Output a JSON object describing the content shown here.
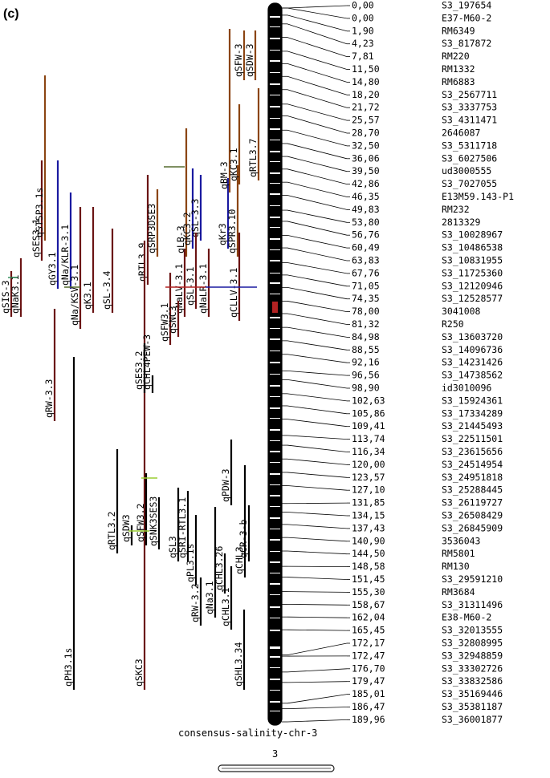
{
  "panel_label": "(c)",
  "chromosome_title": "consensus-salinity-chr-3",
  "chromosome_number": "3",
  "markers": [
    {
      "pos": "0,00",
      "name": "S3_197654"
    },
    {
      "pos": "0,00",
      "name": "E37-M60-2"
    },
    {
      "pos": "1,90",
      "name": "RM6349"
    },
    {
      "pos": "4,23",
      "name": "S3_817872"
    },
    {
      "pos": "7,81",
      "name": "RM220"
    },
    {
      "pos": "11,50",
      "name": "RM1332"
    },
    {
      "pos": "14,80",
      "name": "RM6883"
    },
    {
      "pos": "18,20",
      "name": "S3_2567711"
    },
    {
      "pos": "21,72",
      "name": "S3_3337753"
    },
    {
      "pos": "25,57",
      "name": "S3_4311471"
    },
    {
      "pos": "28,70",
      "name": "2646087"
    },
    {
      "pos": "32,50",
      "name": "S3_5311718"
    },
    {
      "pos": "36,06",
      "name": "S3_6027506"
    },
    {
      "pos": "39,50",
      "name": "ud3000555"
    },
    {
      "pos": "42,86",
      "name": "S3_7027055"
    },
    {
      "pos": "46,35",
      "name": "E13M59.143-P1"
    },
    {
      "pos": "49,83",
      "name": "RM232"
    },
    {
      "pos": "53,80",
      "name": "2813329"
    },
    {
      "pos": "56,76",
      "name": "S3_10028967"
    },
    {
      "pos": "60,49",
      "name": "S3_10486538"
    },
    {
      "pos": "63,83",
      "name": "S3_10831955"
    },
    {
      "pos": "67,76",
      "name": "S3_11725360"
    },
    {
      "pos": "71,05",
      "name": "S3_12120946"
    },
    {
      "pos": "74,35",
      "name": "S3_12528577"
    },
    {
      "pos": "78,00",
      "name": "3041008"
    },
    {
      "pos": "81,32",
      "name": "R250"
    },
    {
      "pos": "84,98",
      "name": "S3_13603720"
    },
    {
      "pos": "88,55",
      "name": "S3_14096736"
    },
    {
      "pos": "92,16",
      "name": "S3_14231426"
    },
    {
      "pos": "96,56",
      "name": "S3_14738562"
    },
    {
      "pos": "98,90",
      "name": "id3010096"
    },
    {
      "pos": "102,63",
      "name": "S3_15924361"
    },
    {
      "pos": "105,86",
      "name": "S3_17334289"
    },
    {
      "pos": "109,41",
      "name": "S3_21445493"
    },
    {
      "pos": "113,74",
      "name": "S3_22511501"
    },
    {
      "pos": "116,34",
      "name": "S3_23615656"
    },
    {
      "pos": "120,00",
      "name": "S3_24514954"
    },
    {
      "pos": "123,57",
      "name": "S3_24951818"
    },
    {
      "pos": "127,10",
      "name": "S3_25288445"
    },
    {
      "pos": "131,85",
      "name": "S3_26119727"
    },
    {
      "pos": "134,15",
      "name": "S3_26508429"
    },
    {
      "pos": "137,43",
      "name": "S3_26845909"
    },
    {
      "pos": "140,90",
      "name": "3536043"
    },
    {
      "pos": "144,50",
      "name": "RM5801"
    },
    {
      "pos": "148,58",
      "name": "RM130"
    },
    {
      "pos": "151,45",
      "name": "S3_29591210"
    },
    {
      "pos": "155,30",
      "name": "RM3684"
    },
    {
      "pos": "158,67",
      "name": "S3_31311496"
    },
    {
      "pos": "162,04",
      "name": "E38-M60-2"
    },
    {
      "pos": "165,45",
      "name": "S3_32013555"
    },
    {
      "pos": "172,17",
      "name": "S3_32808995"
    },
    {
      "pos": "172,47",
      "name": "S3_32948859"
    },
    {
      "pos": "176,70",
      "name": "S3_33302726"
    },
    {
      "pos": "179,47",
      "name": "S3_33832586"
    },
    {
      "pos": "185,01",
      "name": "S3_35169446"
    },
    {
      "pos": "186,47",
      "name": "S3_35381187"
    },
    {
      "pos": "189,96",
      "name": "S3_36001877"
    }
  ],
  "qtls": [
    {
      "label": "qSIS-3",
      "color": "#6b1414"
    },
    {
      "label": "qNaK3.1",
      "color": "#6b1414"
    },
    {
      "label": "qSES3.1",
      "color": "#6b1414"
    },
    {
      "label": "qSTSP3.1s",
      "color": "#8b4513"
    },
    {
      "label": "qGY3.1",
      "color": "#1a1aa0"
    },
    {
      "label": "qNa/KLR-3.1",
      "color": "#1a1aa0"
    },
    {
      "label": "qNa/KSV-3.1",
      "color": "#6b1414"
    },
    {
      "label": "qK3.1",
      "color": "#6b1414"
    },
    {
      "label": "qSL-3.4",
      "color": "#6b1414"
    },
    {
      "label": "qRW-3.3",
      "color": "#6b1414"
    },
    {
      "label": "qPH3.1s",
      "color": "#000000"
    },
    {
      "label": "qRTL3.9",
      "color": "#6b1414"
    },
    {
      "label": "qSRP3DSE3",
      "color": "#8b4513"
    },
    {
      "label": "qSKC3",
      "color": "#6b1414"
    },
    {
      "label": "qSFW3.1",
      "color": "#6b1414"
    },
    {
      "label": "qCHL4PEW-3",
      "color": "#000000"
    },
    {
      "label": "qSES3.2",
      "color": "#000000"
    },
    {
      "label": "qLB-3",
      "color": "#8b4513"
    },
    {
      "label": "qKC3.2",
      "color": "#1a1aa0"
    },
    {
      "label": "qSL-3.3",
      "color": "#1a1aa0"
    },
    {
      "label": "qSL-3.1",
      "color": "#6b1414"
    },
    {
      "label": "qNaLV-3.1",
      "color": "#6b1414"
    },
    {
      "label": "qSNC3",
      "color": "#6b1414"
    },
    {
      "label": "qKr3",
      "color": "#1a1aa0"
    },
    {
      "label": "qNaLR-3.1",
      "color": "#6b1414"
    },
    {
      "label": "qSPR3.10",
      "color": "#8b4513"
    },
    {
      "label": "qCLLV-3.1",
      "color": "#6b1414"
    },
    {
      "label": "qBM-3",
      "color": "#8b4513"
    },
    {
      "label": "qKC3.1",
      "color": "#8b4513"
    },
    {
      "label": "qSFW-3",
      "color": "#8b4513"
    },
    {
      "label": "qSDW-3",
      "color": "#8b4513"
    },
    {
      "label": "qRTL3.7",
      "color": "#8b4513"
    },
    {
      "label": "qRTL3.2",
      "color": "#000000"
    },
    {
      "label": "qSDW3",
      "color": "#000000"
    },
    {
      "label": "qSFW3.2",
      "color": "#000000"
    },
    {
      "label": "qSNK3SES3",
      "color": "#000000"
    },
    {
      "label": "qSL3",
      "color": "#000000"
    },
    {
      "label": "qSRI-RTL3.1",
      "color": "#000000"
    },
    {
      "label": "qPL3.1s",
      "color": "#000000"
    },
    {
      "label": "qRW-3.2",
      "color": "#000000"
    },
    {
      "label": "qNa3.1",
      "color": "#000000"
    },
    {
      "label": "qCHL3.26",
      "color": "#000000"
    },
    {
      "label": "qCHL3.1",
      "color": "#000000"
    },
    {
      "label": "qPDW-3",
      "color": "#000000"
    },
    {
      "label": "qCHL3",
      "color": "#000000"
    },
    {
      "label": "qCR-3-b",
      "color": "#000000"
    },
    {
      "label": "qSHL3.34",
      "color": "#000000"
    }
  ]
}
